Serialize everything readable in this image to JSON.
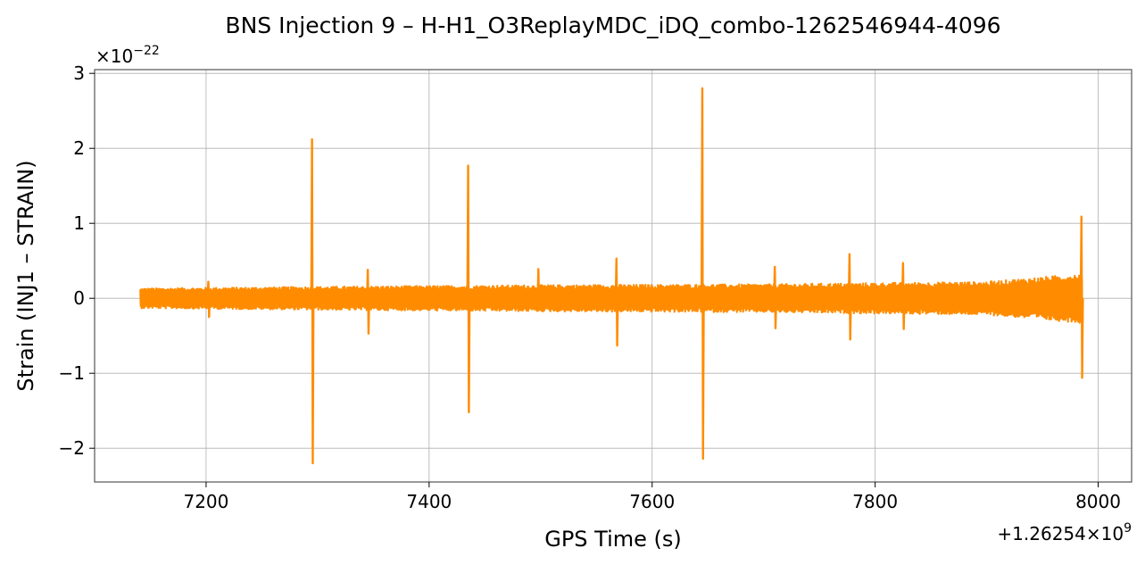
{
  "chart_data": {
    "type": "line",
    "title": "BNS Injection 9 – H-H1_O3ReplayMDC_iDQ_combo-1262546944-4096",
    "xlabel": "GPS Time (s)",
    "ylabel": "Strain (INJ1 – STRAIN)",
    "x_offset_label": "+1.26254×10",
    "x_offset_exponent": "9",
    "y_scale_label": "×10",
    "y_scale_exponent": "−22",
    "xlim": [
      7100,
      8030
    ],
    "ylim": [
      -2.45,
      3.05
    ],
    "x_ticks": [
      7200,
      7400,
      7600,
      7800,
      8000
    ],
    "x_tick_labels": [
      "7200",
      "7400",
      "7600",
      "7800",
      "8000"
    ],
    "y_ticks": [
      -2,
      -1,
      0,
      1,
      2,
      3
    ],
    "y_tick_labels": [
      "−2",
      "−1",
      "0",
      "1",
      "2",
      "3"
    ],
    "grid": true,
    "color": "#ff8c00",
    "data_span": [
      7141,
      7986
    ],
    "baseline_noise_amplitude": [
      {
        "x": 7141,
        "amp": 0.12
      },
      {
        "x": 7300,
        "amp": 0.14
      },
      {
        "x": 7500,
        "amp": 0.16
      },
      {
        "x": 7700,
        "amp": 0.17
      },
      {
        "x": 7900,
        "amp": 0.2
      },
      {
        "x": 7986,
        "amp": 0.3
      }
    ],
    "spikes": [
      {
        "x": 7202,
        "max": 0.22,
        "min": -0.25
      },
      {
        "x": 7295,
        "max": 2.12,
        "min": -2.2
      },
      {
        "x": 7345,
        "max": 0.38,
        "min": -0.47
      },
      {
        "x": 7435,
        "max": 1.77,
        "min": -1.52
      },
      {
        "x": 7498,
        "max": 0.39,
        "min": -0.1
      },
      {
        "x": 7568,
        "max": 0.53,
        "min": -0.63
      },
      {
        "x": 7645,
        "max": 2.8,
        "min": -2.14
      },
      {
        "x": 7710,
        "max": 0.42,
        "min": -0.4
      },
      {
        "x": 7777,
        "max": 0.59,
        "min": -0.55
      },
      {
        "x": 7825,
        "max": 0.47,
        "min": -0.41
      },
      {
        "x": 7985,
        "max": 1.09,
        "min": -1.06
      }
    ]
  }
}
